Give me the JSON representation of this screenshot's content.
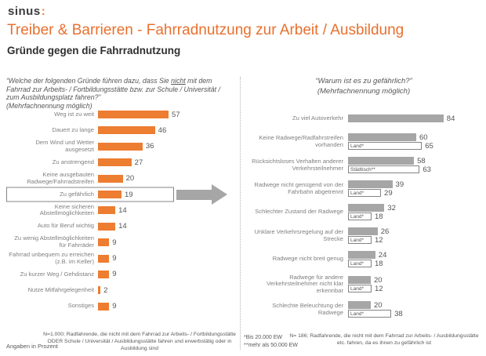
{
  "header": {
    "logo_text": "sinus",
    "logo_colon": ":",
    "title": "Treiber & Barrieren - Fahrradnutzung zur Arbeit / Ausbildung",
    "subtitle": "Gründe gegen die Fahrradnutzung"
  },
  "colors": {
    "orange": "#ED7D31",
    "title_orange": "#E8702E",
    "gray_bar": "#A6A6A6",
    "subbar_border": "#848484",
    "label_gray": "#808080",
    "text_gray": "#595959"
  },
  "left_panel": {
    "question": {
      "pre": "“Welche der folgenden Gründe führen dazu, dass Sie ",
      "underlined": "nicht",
      "post": " mit dem Fahrrad zur Arbeits- / Fortbildungsstätte bzw. zur Schule / Universität / zum Ausbildungsplatz fahren?”",
      "note": "(Mehrfachnennung möglich)"
    }
  },
  "right_panel": {
    "question": {
      "line1": "“Warum ist es zu gefährlich?”",
      "line2": "(Mehrfachnennung möglich)"
    }
  },
  "chart_data": [
    {
      "type": "bar",
      "orientation": "horizontal",
      "title": "“Welche der folgenden Gründe führen dazu, dass Sie nicht mit dem Fahrrad zur Arbeits- / Fortbildungsstätte bzw. zur Schule / Universität / zum Ausbildungsplatz fahren?” (Mehrfachnennung möglich)",
      "unit": "percent",
      "categories": [
        "Weg ist zu weit",
        "Dauert zu lange",
        "Dem Wind und Wetter ausgesetzt",
        "Zu anstrengend",
        "Keine ausgebauten Radwege/Fahrradstreifen",
        "Zu gefährlich",
        "Keine sicheren Abstellmöglichkeiten",
        "Auto für Beruf wichtig",
        "Zu wenig Abstellmöglichkeiten für Fahrräder",
        "Fahrrad unbequem zu erreichen (z.B. im Keller)",
        "Zu kurzer Weg / Gehdistanz",
        "Nutze Mitfahrgelegenheit",
        "Sonstiges"
      ],
      "values": [
        57,
        46,
        36,
        27,
        20,
        19,
        14,
        14,
        9,
        9,
        9,
        2,
        9
      ],
      "highlight_category": "Zu gefährlich",
      "bar_color": "#ED7D31",
      "xlim": [
        0,
        62
      ],
      "grid": false,
      "data_labels": true
    },
    {
      "type": "bar",
      "orientation": "horizontal",
      "title": "“Warum ist es zu gefährlich?” (Mehrfachnennung möglich)",
      "unit": "percent",
      "categories": [
        "Zu viel Autoverkehr",
        "Keine Radwege/Radfahrstreifen vorhanden",
        "Rücksichtsloses Verhalten anderer Verkehrsteilnehmer",
        "Radwege nicht genügend von der Fahrbahn abgetrennt",
        "Schlechter Zustand der Radwege",
        "Unklare Verkehrsregelung auf der Strecke",
        "Radwege nicht breit genug",
        "Radwege für andere Verkehrsteilnehmer nicht klar erkennbar",
        "Schlechte Beleuchtung der Radwege"
      ],
      "series": [
        {
          "role": "overall",
          "color": "#A6A6A6",
          "values": [
            84,
            60,
            58,
            39,
            32,
            26,
            24,
            20,
            20
          ]
        },
        {
          "role": "subgroup",
          "color": "#FFFFFF",
          "border_color": "#848484",
          "values": [
            null,
            65,
            63,
            29,
            18,
            12,
            18,
            12,
            38
          ],
          "bar_labels": [
            null,
            "Land*",
            "Städtisch**",
            "Land*",
            "Land*",
            "Land*",
            "Land*",
            "Land*",
            "Land*"
          ]
        }
      ],
      "xlim": [
        0,
        90
      ],
      "grid": false,
      "data_labels": true
    }
  ],
  "footnotes": {
    "angaben": "Angaben in Prozent",
    "left_n": "N=1.000; Radfahrende, die nicht mit dem Fahrrad zur Arbeits- / Fortbildungsstätte ODER Schule / Universität / Ausbildungsstätte fahren und erwerbstätig oder in Ausbildung sind",
    "star1": "*Bis 20.000 EW",
    "star2": "**mehr als 50.000 EW",
    "right_n": "N= 186; Radfahrende, die nicht mit dem Fahrrad zur Arbeits- / Ausbildungsstätte etc. fahren, da es ihnen zu gefährlich ist"
  }
}
